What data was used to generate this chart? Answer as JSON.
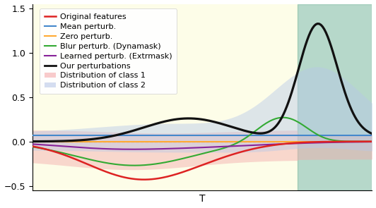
{
  "title": "",
  "xlabel": "T",
  "ylabel": "",
  "ylim": [
    -0.55,
    1.55
  ],
  "xlim": [
    0,
    100
  ],
  "n_points": 200,
  "bg_yellow_color": "#fdfde8",
  "bg_green_color": "#7ab8a0",
  "bg_yellow_alpha": 1.0,
  "bg_green_alpha": 0.55,
  "bg_split": 78,
  "dashed_zero_color": "#999999",
  "class1_fill_color": "#f4aaaa",
  "class2_fill_color": "#b8c8e8",
  "original_color": "#dd2222",
  "mean_color": "#4488cc",
  "zero_color": "#ffaa33",
  "blur_color": "#33aa33",
  "learned_color": "#882299",
  "ours_color": "#111111",
  "legend_fontsize": 8.0,
  "figw": 5.32,
  "figh": 2.95
}
